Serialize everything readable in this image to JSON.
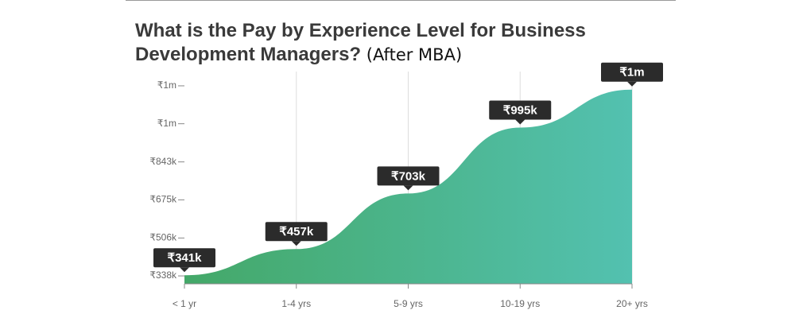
{
  "chart_data": {
    "type": "area",
    "title": "What is the Pay by Experience Level for Business Development Managers?",
    "subtitle": "(After MBA)",
    "categories": [
      "< 1 yr",
      "1-4 yrs",
      "5-9 yrs",
      "10-19 yrs",
      "20+ yrs"
    ],
    "values": [
      341000,
      457000,
      703000,
      995000,
      1163000
    ],
    "value_labels": [
      "₹341k",
      "₹457k",
      "₹703k",
      "₹995k",
      "₹1m"
    ],
    "color_start": "#44a868",
    "color_end": "#53c1b0",
    "ylim": [
      303000,
      1208000
    ],
    "yticks": [
      {
        "value": 338000,
        "label": "₹338k"
      },
      {
        "value": 506000,
        "label": "₹506k"
      },
      {
        "value": 675000,
        "label": "₹675k"
      },
      {
        "value": 843000,
        "label": "₹843k"
      },
      {
        "value": 1012000,
        "label": "₹1m"
      },
      {
        "value": 1180000,
        "label": "₹1m"
      }
    ],
    "grid": true
  }
}
